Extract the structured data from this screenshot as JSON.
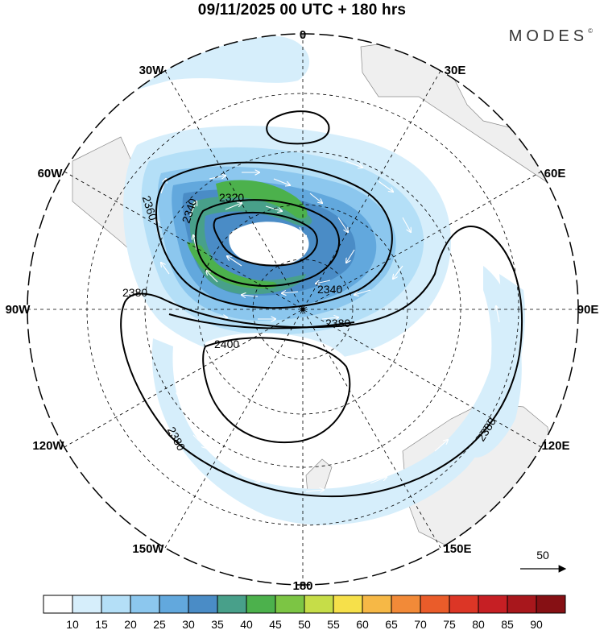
{
  "title": "09/11/2025  00 UTC  + 180 hrs",
  "brand": "MODES",
  "brand_mark": "©",
  "meridian_labels": {
    "m0": "0",
    "m30e": "30E",
    "m60e": "60E",
    "m90e": "90E",
    "m120e": "120E",
    "m150e": "150E",
    "m180": "180",
    "m150w": "150W",
    "m120w": "120W",
    "m90w": "90W",
    "m60w": "60W",
    "m30w": "30W"
  },
  "contour_labels": {
    "c2320": "2320",
    "c2340a": "2340",
    "c2340b": "2340",
    "c2360": "2360",
    "c2380a": "2380",
    "c2380b": "2380",
    "c2380c": "2380",
    "c2380d": "2380",
    "c2400": "2400"
  },
  "vector_reference": "50",
  "colorbar": {
    "ticks": [
      "10",
      "15",
      "20",
      "25",
      "30",
      "35",
      "40",
      "45",
      "50",
      "55",
      "60",
      "65",
      "70",
      "75",
      "80",
      "85",
      "90"
    ],
    "colors": [
      "#ffffff",
      "#d6eefb",
      "#b4dff7",
      "#8cc7ee",
      "#62a8dd",
      "#4a8cc6",
      "#48a08a",
      "#4cb14c",
      "#7cc544",
      "#c6dd48",
      "#f6e04a",
      "#f6b846",
      "#f28a38",
      "#ea5c2a",
      "#dc3626",
      "#c61f24",
      "#a8171c",
      "#861014"
    ]
  }
}
